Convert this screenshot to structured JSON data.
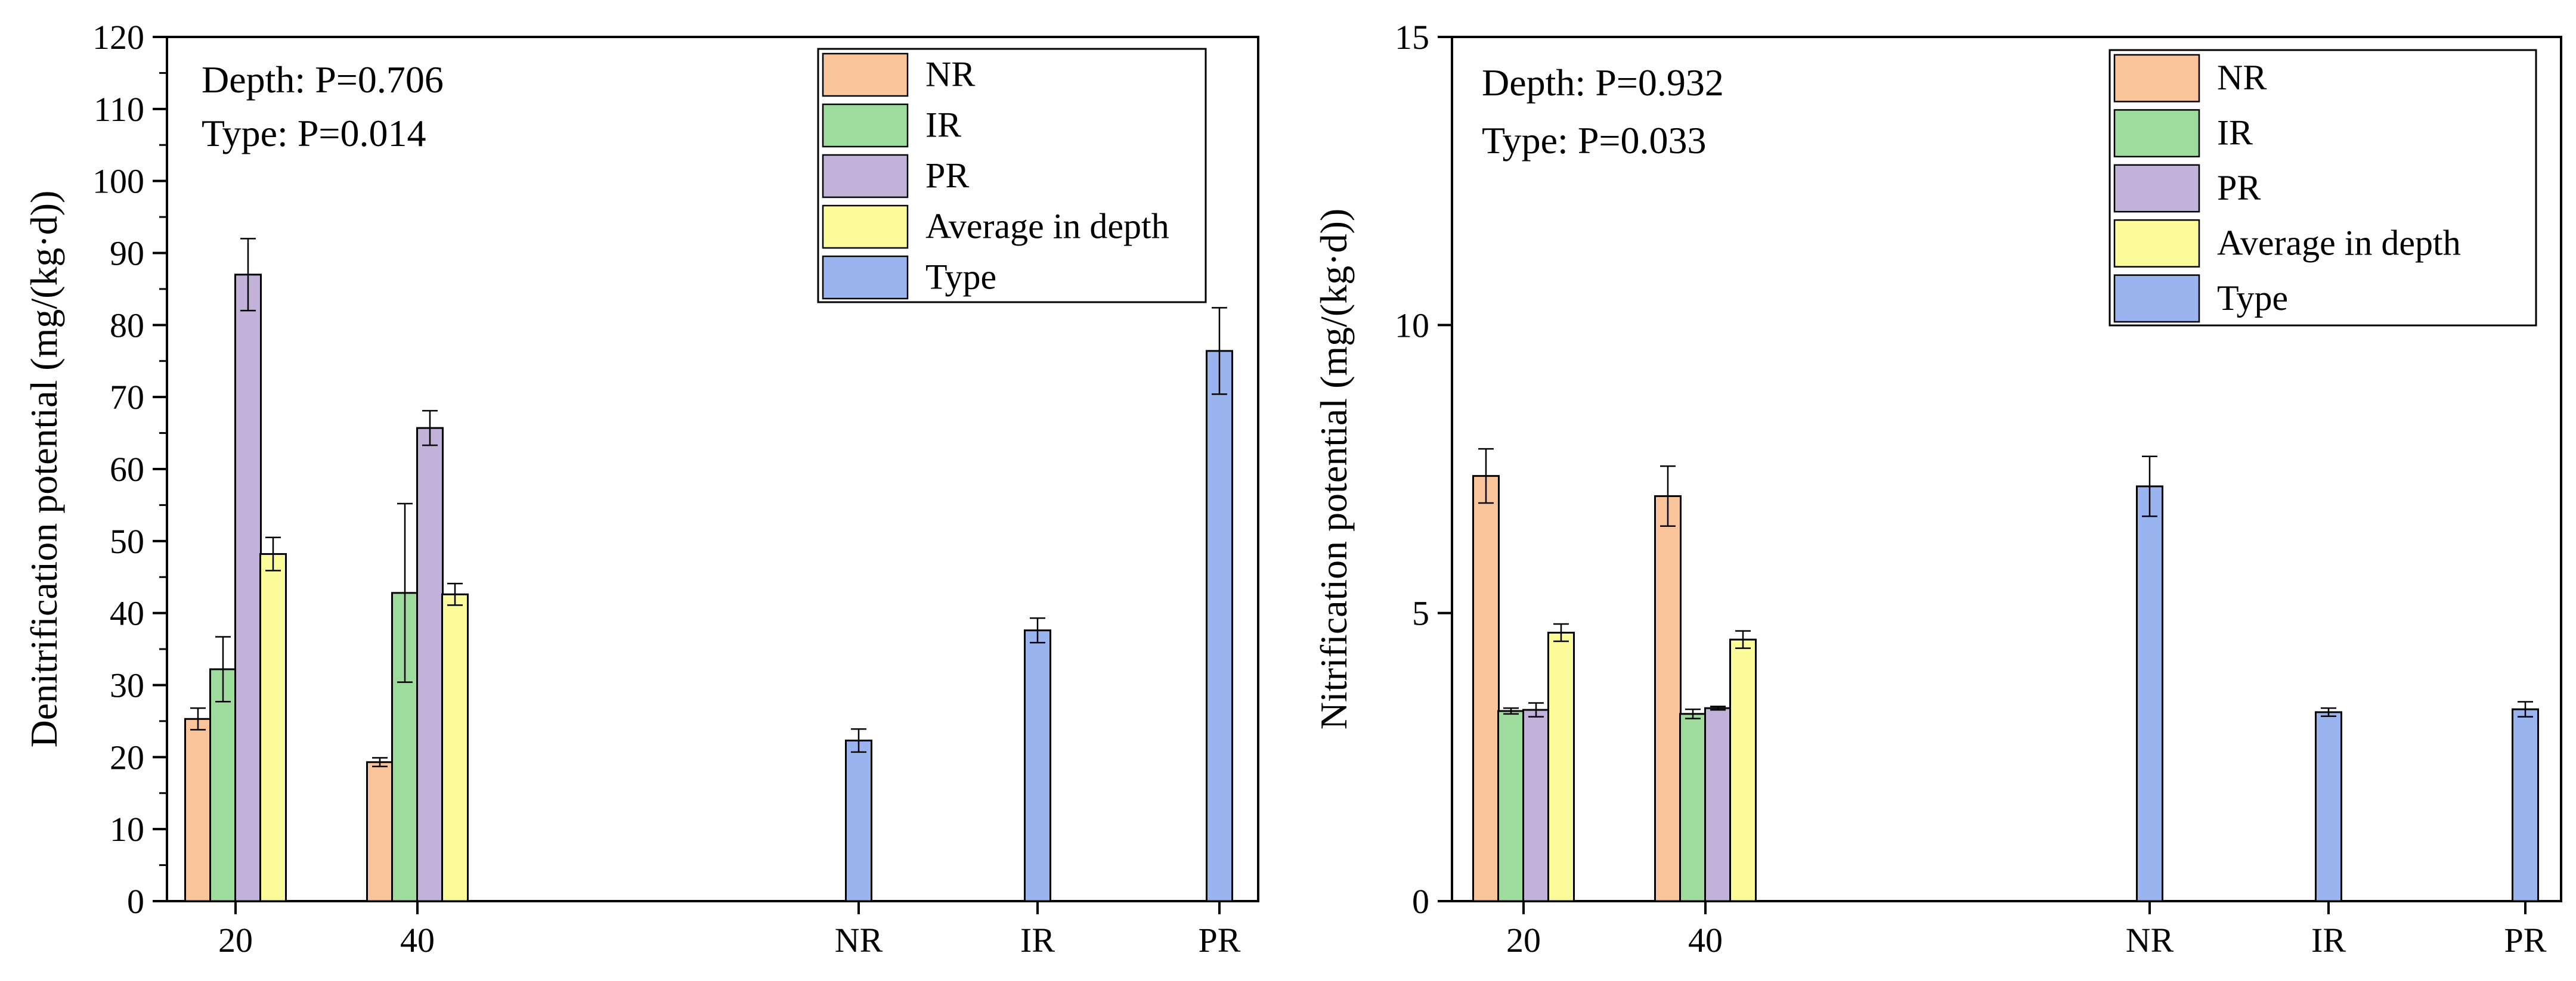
{
  "colors": {
    "NR": "#f9c499",
    "IR": "#9edc9e",
    "PR": "#c2b1d9",
    "Average in depth": "#fbfb9a",
    "Type": "#9ab4ef"
  },
  "chart_data": [
    {
      "type": "bar",
      "ylabel": "Denitrification potential (mg/(kg·d))",
      "xlabel": "",
      "ylim": [
        0,
        120
      ],
      "ytick_step": 10,
      "minor_ticks": true,
      "categories": [
        "20",
        "40",
        "NR",
        "IR",
        "PR"
      ],
      "stats": [
        "Depth: P=0.706",
        "Type: P=0.014"
      ],
      "legend": [
        "NR",
        "IR",
        "PR",
        "Average in depth",
        "Type"
      ],
      "legend_position": "top-right",
      "grid": false,
      "series": [
        {
          "name": "NR",
          "values": [
            25.3,
            19.3,
            null,
            null,
            null
          ],
          "errors": [
            1.5,
            0.6,
            null,
            null,
            null
          ]
        },
        {
          "name": "IR",
          "values": [
            32.2,
            42.8,
            null,
            null,
            null
          ],
          "errors": [
            4.5,
            12.4,
            null,
            null,
            null
          ]
        },
        {
          "name": "PR",
          "values": [
            87.0,
            65.7,
            null,
            null,
            null
          ],
          "errors": [
            5.0,
            2.4,
            null,
            null,
            null
          ]
        },
        {
          "name": "Average in depth",
          "values": [
            48.2,
            42.6,
            null,
            null,
            null
          ],
          "errors": [
            2.3,
            1.5,
            null,
            null,
            null
          ]
        },
        {
          "name": "Type",
          "values": [
            null,
            null,
            22.3,
            37.6,
            76.4
          ],
          "errors": [
            null,
            null,
            1.6,
            1.7,
            6.0
          ]
        }
      ]
    },
    {
      "type": "bar",
      "ylabel": "Nitrification potential (mg/(kg·d))",
      "xlabel": "",
      "ylim": [
        0,
        15
      ],
      "ytick_step": 5,
      "minor_ticks": false,
      "categories": [
        "20",
        "40",
        "NR",
        "IR",
        "PR"
      ],
      "stats": [
        "Depth: P=0.932",
        "Type: P=0.033"
      ],
      "legend": [
        "NR",
        "IR",
        "PR",
        "Average in depth",
        "Type"
      ],
      "legend_position": "top-right",
      "grid": false,
      "series": [
        {
          "name": "NR",
          "values": [
            7.38,
            7.03,
            null,
            null,
            null
          ],
          "errors": [
            0.47,
            0.52,
            null,
            null,
            null
          ]
        },
        {
          "name": "IR",
          "values": [
            3.3,
            3.25,
            null,
            null,
            null
          ],
          "errors": [
            0.05,
            0.08,
            null,
            null,
            null
          ]
        },
        {
          "name": "PR",
          "values": [
            3.32,
            3.35,
            null,
            null,
            null
          ],
          "errors": [
            0.12,
            0.03,
            null,
            null,
            null
          ]
        },
        {
          "name": "Average in depth",
          "values": [
            4.66,
            4.54,
            null,
            null,
            null
          ],
          "errors": [
            0.15,
            0.15,
            null,
            null,
            null
          ]
        },
        {
          "name": "Type",
          "values": [
            null,
            null,
            7.2,
            3.28,
            3.33
          ],
          "errors": [
            null,
            null,
            0.52,
            0.07,
            0.13
          ]
        }
      ]
    }
  ]
}
